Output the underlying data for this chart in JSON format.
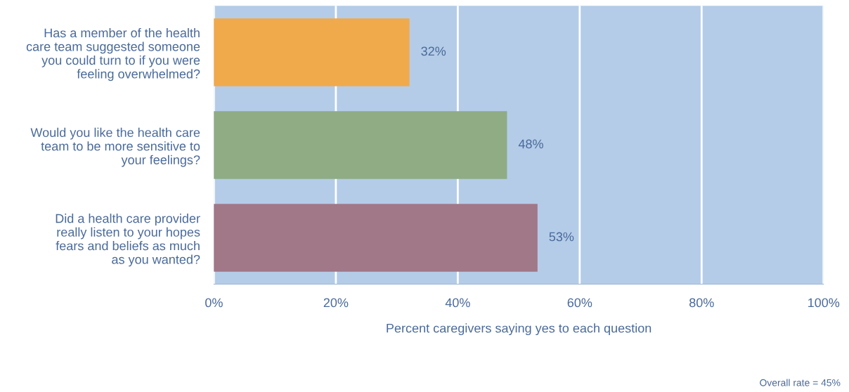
{
  "chart_data": {
    "type": "bar",
    "orientation": "horizontal",
    "categories": [
      "Has a member of the health\ncare team suggested someone\nyou could turn to if you were\nfeeling overwhelmed?",
      "Would you like the health care\nteam to be more sensitive to\nyour feelings?",
      "Did a health care provider\nreally listen to your hopes\nfears and beliefs as much\nas you wanted?"
    ],
    "values": [
      32,
      48,
      53
    ],
    "colors": [
      "#f0aa4c",
      "#8fac85",
      "#a07888"
    ],
    "data_labels": true,
    "value_labels": [
      "32%",
      "48%",
      "53%"
    ],
    "xlabel": "Percent caregivers saying yes to each question",
    "xlim": [
      0,
      100
    ],
    "xticks": [
      {
        "value": 0,
        "label": "0%"
      },
      {
        "value": 20,
        "label": "20%"
      },
      {
        "value": 40,
        "label": "40%"
      },
      {
        "value": 60,
        "label": "60%"
      },
      {
        "value": 80,
        "label": "80%"
      },
      {
        "value": 100,
        "label": "100%"
      }
    ],
    "grid": "x",
    "legend": false,
    "annotations": [
      "Overall rate = 45%"
    ]
  }
}
